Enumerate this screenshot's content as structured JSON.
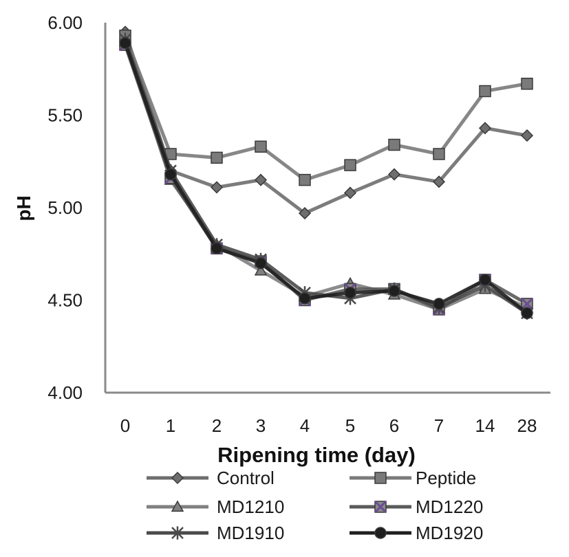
{
  "chart_data": {
    "type": "line",
    "title": "",
    "xlabel": "Ripening time (day)",
    "ylabel": "pH",
    "categories": [
      "0",
      "1",
      "2",
      "3",
      "4",
      "5",
      "6",
      "7",
      "14",
      "28"
    ],
    "ylim": [
      4.0,
      6.0
    ],
    "yticks": [
      "4.00",
      "4.50",
      "5.00",
      "5.50",
      "6.00"
    ],
    "grid": false,
    "legend_position": "bottom",
    "series": [
      {
        "name": "Control",
        "marker": "diamond",
        "color": "#6e6e6e",
        "values": [
          5.95,
          5.2,
          5.11,
          5.15,
          4.97,
          5.08,
          5.18,
          5.14,
          5.43,
          5.39
        ]
      },
      {
        "name": "Peptide",
        "marker": "square",
        "color": "#7a7a7a",
        "values": [
          5.93,
          5.29,
          5.27,
          5.33,
          5.15,
          5.23,
          5.34,
          5.29,
          5.63,
          5.67
        ]
      },
      {
        "name": "MD1210",
        "marker": "triangle",
        "color": "#808080",
        "values": [
          5.9,
          5.15,
          4.8,
          4.66,
          4.52,
          4.59,
          4.53,
          4.45,
          4.56,
          4.46
        ]
      },
      {
        "name": "MD1220",
        "marker": "square-x",
        "color": "#5a5a5a",
        "values": [
          5.88,
          5.16,
          4.78,
          4.71,
          4.5,
          4.56,
          4.56,
          4.45,
          4.61,
          4.48
        ]
      },
      {
        "name": "MD1910",
        "marker": "star",
        "color": "#4a4a4a",
        "values": [
          5.91,
          5.2,
          4.8,
          4.72,
          4.54,
          4.51,
          4.56,
          4.46,
          4.58,
          4.43
        ]
      },
      {
        "name": "MD1920",
        "marker": "circle",
        "color": "#1f1f1f",
        "values": [
          5.89,
          5.18,
          4.78,
          4.7,
          4.51,
          4.54,
          4.55,
          4.48,
          4.61,
          4.43
        ]
      }
    ]
  }
}
